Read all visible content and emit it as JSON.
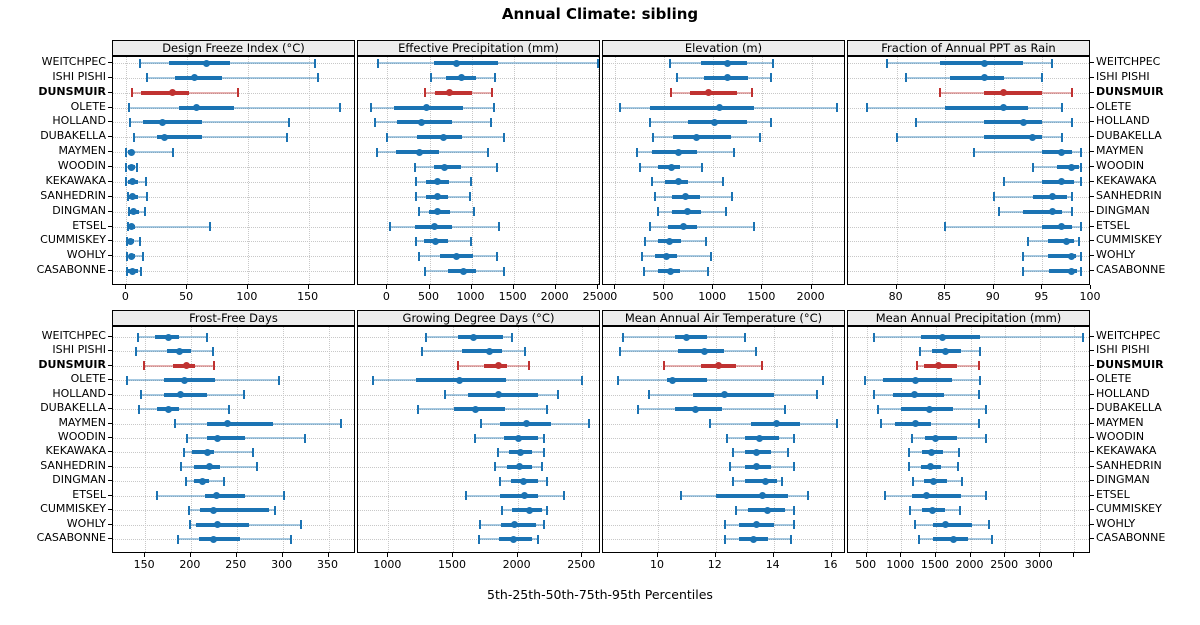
{
  "title": "Annual Climate: sibling",
  "caption": "5th-25th-50th-75th-95th Percentiles",
  "colors": {
    "series": "#1b73b3",
    "highlight": "#c03231",
    "strip_bg": "#ececec",
    "grid": "#c8c8c8"
  },
  "chart_data": {
    "type": "dotplot-percentiles",
    "percentiles": [
      "5th",
      "25th",
      "50th",
      "75th",
      "95th"
    ],
    "layout": {
      "rows": 2,
      "cols": 4,
      "grid": "dotted",
      "highlight_style": "red-bold"
    },
    "stations": [
      "WEITCHPEC",
      "ISHI PISHI",
      "DUNSMUIR",
      "OLETE",
      "HOLLAND",
      "DUBAKELLA",
      "MAYMEN",
      "WOODIN",
      "KEKAWAKA",
      "SANHEDRIN",
      "DINGMAN",
      "ETSEL",
      "CUMMISKEY",
      "WOHLY",
      "CASABONNE"
    ],
    "highlight_station": "DUNSMUIR",
    "panels": [
      {
        "title": "Design Freeze Index (°C)",
        "xlim": [
          -11,
          189
        ],
        "ticks": [
          0,
          50,
          100,
          150
        ],
        "tick_labels": [
          "0",
          "50",
          "100",
          "150"
        ],
        "rows": [
          [
            11,
            35,
            66,
            85,
            155
          ],
          [
            17,
            40,
            56,
            79,
            158
          ],
          [
            5,
            12,
            38,
            52,
            92
          ],
          [
            2,
            43,
            58,
            89,
            176
          ],
          [
            3,
            14,
            30,
            62,
            134
          ],
          [
            6,
            25,
            31,
            62,
            132
          ],
          [
            0,
            1,
            4,
            6,
            38
          ],
          [
            0,
            1,
            4,
            7,
            9
          ],
          [
            0,
            1,
            5,
            10,
            16
          ],
          [
            1,
            2,
            5,
            10,
            17
          ],
          [
            2,
            3,
            6,
            10,
            15
          ],
          [
            1,
            2,
            4,
            7,
            69
          ],
          [
            0.5,
            1,
            3,
            6,
            11
          ],
          [
            0.5,
            2,
            4,
            7,
            14
          ],
          [
            0.5,
            1,
            5,
            10,
            12
          ]
        ]
      },
      {
        "title": "Effective Precipitation (mm)",
        "xlim": [
          -350,
          2540
        ],
        "ticks": [
          0,
          500,
          1000,
          1500,
          2000,
          2500
        ],
        "tick_labels": [
          "0",
          "500",
          "1000",
          "1500",
          "2000",
          "2500"
        ],
        "rows": [
          [
            -110,
            550,
            820,
            1310,
            2500
          ],
          [
            520,
            700,
            880,
            1050,
            1280
          ],
          [
            450,
            560,
            740,
            1000,
            1240
          ],
          [
            -200,
            75,
            470,
            900,
            1270
          ],
          [
            -150,
            110,
            400,
            770,
            1230
          ],
          [
            0,
            350,
            670,
            890,
            1390
          ],
          [
            -120,
            100,
            380,
            620,
            1200
          ],
          [
            330,
            550,
            680,
            870,
            1300
          ],
          [
            340,
            460,
            590,
            730,
            990
          ],
          [
            340,
            460,
            590,
            720,
            980
          ],
          [
            370,
            490,
            590,
            750,
            1030
          ],
          [
            30,
            330,
            560,
            770,
            1330
          ],
          [
            340,
            440,
            575,
            720,
            990
          ],
          [
            370,
            630,
            820,
            1020,
            1300
          ],
          [
            450,
            720,
            900,
            1050,
            1390
          ]
        ]
      },
      {
        "title": "Elevation (m)",
        "xlim": [
          -120,
          2350
        ],
        "ticks": [
          0,
          500,
          1000,
          1500,
          2000
        ],
        "tick_labels": [
          "0",
          "500",
          "1000",
          "1500",
          "2000"
        ],
        "rows": [
          [
            560,
            875,
            1150,
            1340,
            1610
          ],
          [
            630,
            910,
            1140,
            1350,
            1590
          ],
          [
            570,
            760,
            955,
            1240,
            1390
          ],
          [
            55,
            360,
            1060,
            1420,
            2260
          ],
          [
            355,
            740,
            1010,
            1340,
            1590
          ],
          [
            385,
            590,
            825,
            1180,
            1480
          ],
          [
            225,
            375,
            645,
            840,
            1210
          ],
          [
            260,
            440,
            580,
            660,
            890
          ],
          [
            375,
            510,
            645,
            740,
            1095
          ],
          [
            410,
            580,
            715,
            870,
            1195
          ],
          [
            440,
            580,
            735,
            875,
            1130
          ],
          [
            360,
            540,
            700,
            840,
            1415
          ],
          [
            305,
            440,
            555,
            670,
            925
          ],
          [
            275,
            410,
            530,
            630,
            975
          ],
          [
            295,
            440,
            565,
            665,
            950
          ]
        ]
      },
      {
        "title": "Fraction of Annual PPT as Rain",
        "xlim": [
          75,
          100
        ],
        "ticks": [
          80,
          85,
          90,
          95,
          100
        ],
        "tick_labels": [
          "80",
          "85",
          "90",
          "95",
          "100"
        ],
        "rows": [
          [
            79,
            84.5,
            89,
            93,
            96
          ],
          [
            81,
            85.5,
            89,
            91,
            95
          ],
          [
            84.5,
            89,
            91,
            95,
            98
          ],
          [
            77,
            85,
            91,
            93.5,
            97
          ],
          [
            82,
            89,
            93,
            95,
            98
          ],
          [
            80,
            89,
            94,
            95,
            97
          ],
          [
            88,
            95,
            97,
            98,
            99
          ],
          [
            94,
            96.5,
            98,
            98.8,
            99
          ],
          [
            91,
            95,
            97,
            98.3,
            99
          ],
          [
            90,
            94,
            96,
            97.5,
            98
          ],
          [
            90.5,
            93,
            96,
            97,
            98
          ],
          [
            85,
            95,
            97,
            98,
            99
          ],
          [
            93.5,
            95.6,
            97.5,
            98.3,
            98.8
          ],
          [
            93,
            95.6,
            98,
            98.5,
            99
          ],
          [
            93,
            95.7,
            98,
            98.6,
            99
          ]
        ]
      },
      {
        "title": "Frost-Free Days",
        "xlim": [
          115,
          380
        ],
        "ticks": [
          150,
          200,
          250,
          300,
          350
        ],
        "tick_labels": [
          "150",
          "200",
          "250",
          "300",
          "350"
        ],
        "rows": [
          [
            142,
            161,
            175,
            187,
            218
          ],
          [
            140,
            174,
            187,
            200,
            224
          ],
          [
            149,
            180,
            195,
            205,
            225
          ],
          [
            130,
            171,
            193,
            226,
            296
          ],
          [
            145,
            171,
            189,
            218,
            258
          ],
          [
            143,
            163,
            175,
            187,
            241
          ],
          [
            183,
            218,
            240,
            290,
            364
          ],
          [
            196,
            218,
            229,
            259,
            324
          ],
          [
            192,
            201,
            218,
            225,
            268
          ],
          [
            189,
            203,
            220,
            232,
            272
          ],
          [
            195,
            203,
            213,
            220,
            236
          ],
          [
            163,
            215,
            228,
            259,
            301
          ],
          [
            198,
            210,
            225,
            285,
            292
          ],
          [
            199,
            206,
            229,
            263,
            320
          ],
          [
            186,
            209,
            225,
            254,
            309
          ]
        ]
      },
      {
        "title": "Growing Degree Days (°C)",
        "xlim": [
          765,
          2645
        ],
        "ticks": [
          1000,
          1500,
          2000,
          2500
        ],
        "tick_labels": [
          "1000",
          "1500",
          "2000",
          "2500"
        ],
        "rows": [
          [
            1290,
            1535,
            1655,
            1885,
            1955
          ],
          [
            1260,
            1570,
            1780,
            1880,
            2060
          ],
          [
            1535,
            1740,
            1855,
            1920,
            2085
          ],
          [
            880,
            1210,
            1550,
            1910,
            2500
          ],
          [
            1440,
            1615,
            1855,
            2160,
            2315
          ],
          [
            1225,
            1510,
            1675,
            1905,
            2230
          ],
          [
            1715,
            1860,
            2070,
            2260,
            2555
          ],
          [
            1670,
            1895,
            2010,
            2155,
            2205
          ],
          [
            1845,
            1930,
            2020,
            2115,
            2200
          ],
          [
            1825,
            1920,
            2015,
            2110,
            2190
          ],
          [
            1865,
            1950,
            2045,
            2155,
            2225
          ],
          [
            1600,
            1865,
            2050,
            2160,
            2355
          ],
          [
            1880,
            1955,
            2095,
            2190,
            2230
          ],
          [
            1710,
            1870,
            1975,
            2145,
            2200
          ],
          [
            1700,
            1855,
            1965,
            2110,
            2160
          ]
        ]
      },
      {
        "title": "Mean Annual Air Temperature (°C)",
        "xlim": [
          8.1,
          16.5
        ],
        "ticks": [
          10,
          12,
          14,
          16
        ],
        "tick_labels": [
          "10",
          "12",
          "14",
          "16"
        ],
        "rows": [
          [
            8.8,
            10.6,
            11.0,
            11.7,
            13.0
          ],
          [
            8.7,
            10.7,
            11.6,
            12.3,
            13.4
          ],
          [
            10.2,
            11.5,
            12.1,
            12.7,
            13.6
          ],
          [
            8.6,
            10.3,
            10.5,
            11.7,
            15.7
          ],
          [
            9.7,
            11.2,
            12.3,
            14.0,
            15.5
          ],
          [
            9.3,
            10.6,
            11.3,
            12.2,
            14.4
          ],
          [
            11.8,
            13.2,
            14.1,
            14.9,
            16.2
          ],
          [
            12.4,
            13.0,
            13.5,
            14.2,
            14.7
          ],
          [
            12.6,
            13.0,
            13.4,
            13.9,
            14.5
          ],
          [
            12.5,
            13.0,
            13.4,
            13.9,
            14.7
          ],
          [
            12.6,
            13.0,
            13.7,
            14.1,
            14.3
          ],
          [
            10.8,
            12.0,
            13.6,
            14.5,
            15.2
          ],
          [
            12.7,
            13.1,
            13.8,
            14.4,
            14.7
          ],
          [
            12.3,
            12.8,
            13.4,
            14.0,
            14.7
          ],
          [
            12.3,
            12.8,
            13.3,
            13.8,
            14.6
          ]
        ]
      },
      {
        "title": "Mean Annual Precipitation (mm)",
        "xlim": [
          230,
          3740
        ],
        "ticks": [
          500,
          1000,
          1500,
          2000,
          2500,
          3000,
          3500
        ],
        "tick_labels": [
          "500",
          "1000",
          "1500",
          "2000",
          "2500",
          "3000",
          ""
        ],
        "rows": [
          [
            600,
            1285,
            1600,
            2135,
            3620
          ],
          [
            1270,
            1440,
            1635,
            1860,
            2135
          ],
          [
            1220,
            1320,
            1540,
            1800,
            2125
          ],
          [
            480,
            740,
            1200,
            1730,
            2135
          ],
          [
            600,
            875,
            1190,
            1620,
            2115
          ],
          [
            660,
            995,
            1405,
            1750,
            2220
          ],
          [
            705,
            915,
            1210,
            1430,
            2125
          ],
          [
            1155,
            1345,
            1490,
            1800,
            2220
          ],
          [
            1105,
            1300,
            1430,
            1600,
            1835
          ],
          [
            1115,
            1285,
            1415,
            1575,
            1815
          ],
          [
            1175,
            1320,
            1460,
            1655,
            1875
          ],
          [
            770,
            1155,
            1365,
            1860,
            2220
          ],
          [
            1125,
            1300,
            1445,
            1635,
            1845
          ],
          [
            1200,
            1460,
            1635,
            2020,
            2260
          ],
          [
            1250,
            1460,
            1750,
            1970,
            2310
          ]
        ]
      }
    ]
  }
}
